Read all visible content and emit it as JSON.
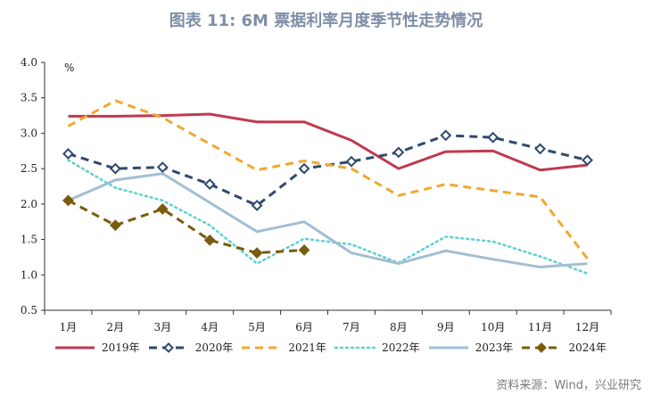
{
  "title": "图表 11: 6M 票据利率月度季节性走势情况",
  "source": "资料来源：Wind，兴业研究",
  "chart_data": {
    "type": "line",
    "ylabel": "%",
    "ylim": [
      0.5,
      4.0
    ],
    "yticks": [
      "4.0",
      "3.5",
      "3.0",
      "2.5",
      "2.0",
      "1.5",
      "1.0",
      "0.5"
    ],
    "categories": [
      "1月",
      "2月",
      "3月",
      "4月",
      "5月",
      "6月",
      "7月",
      "8月",
      "9月",
      "10月",
      "11月",
      "12月"
    ],
    "legend_position": "bottom",
    "grid": false,
    "series": [
      {
        "name": "2019年",
        "color": "#c0394e",
        "style": "solid",
        "marker": "none",
        "values": [
          3.24,
          3.24,
          3.25,
          3.27,
          3.16,
          3.16,
          2.9,
          2.5,
          2.74,
          2.75,
          2.48,
          2.55
        ]
      },
      {
        "name": "2020年",
        "color": "#2f4a6e",
        "style": "dashed",
        "marker": "diamond-open",
        "values": [
          2.71,
          2.5,
          2.52,
          2.28,
          1.98,
          2.5,
          2.6,
          2.73,
          2.97,
          2.94,
          2.78,
          2.62
        ]
      },
      {
        "name": "2021年",
        "color": "#f0a930",
        "style": "dashed",
        "marker": "none",
        "values": [
          3.1,
          3.46,
          3.22,
          2.85,
          2.48,
          2.61,
          2.5,
          2.12,
          2.28,
          2.19,
          2.1,
          1.23
        ]
      },
      {
        "name": "2022年",
        "color": "#5fd0d0",
        "style": "dotted",
        "marker": "none",
        "values": [
          2.62,
          2.23,
          2.05,
          1.7,
          1.16,
          1.51,
          1.43,
          1.17,
          1.54,
          1.47,
          1.26,
          1.02
        ]
      },
      {
        "name": "2023年",
        "color": "#a2bed3",
        "style": "solid",
        "marker": "none",
        "values": [
          2.05,
          2.34,
          2.43,
          2.02,
          1.61,
          1.75,
          1.31,
          1.16,
          1.34,
          1.22,
          1.11,
          1.16
        ]
      },
      {
        "name": "2024年",
        "color": "#7a5c0e",
        "style": "dashed",
        "marker": "diamond-filled",
        "values": [
          2.05,
          1.7,
          1.93,
          1.49,
          1.31,
          1.35,
          null,
          null,
          null,
          null,
          null,
          null
        ]
      }
    ]
  }
}
